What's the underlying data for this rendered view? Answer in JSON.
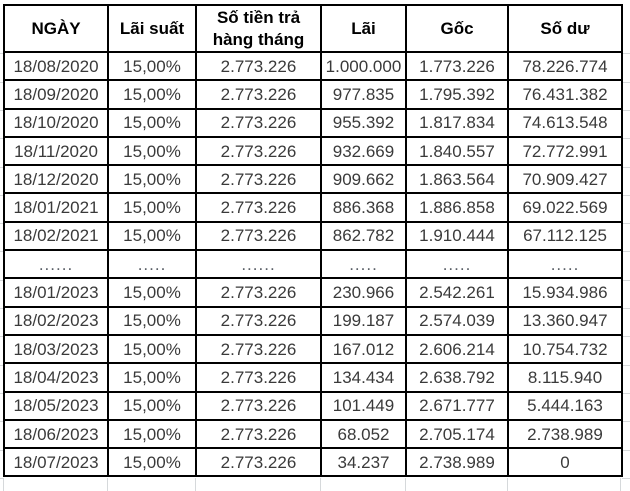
{
  "table": {
    "columns": [
      {
        "label": "NGÀY"
      },
      {
        "label": "Lãi suất"
      },
      {
        "label": "Số tiền trả hàng tháng"
      },
      {
        "label": "Lãi"
      },
      {
        "label": "Gốc"
      },
      {
        "label": "Số dư"
      }
    ],
    "rows": [
      {
        "cells": [
          "18/08/2020",
          "15,00%",
          "2.773.226",
          "1.000.000",
          "1.773.226",
          "78.226.774"
        ]
      },
      {
        "cells": [
          "18/09/2020",
          "15,00%",
          "2.773.226",
          "977.835",
          "1.795.392",
          "76.431.382"
        ]
      },
      {
        "cells": [
          "18/10/2020",
          "15,00%",
          "2.773.226",
          "955.392",
          "1.817.834",
          "74.613.548"
        ]
      },
      {
        "cells": [
          "18/11/2020",
          "15,00%",
          "2.773.226",
          "932.669",
          "1.840.557",
          "72.772.991"
        ]
      },
      {
        "cells": [
          "18/12/2020",
          "15,00%",
          "2.773.226",
          "909.662",
          "1.863.564",
          "70.909.427"
        ]
      },
      {
        "cells": [
          "18/01/2021",
          "15,00%",
          "2.773.226",
          "886.368",
          "1.886.858",
          "69.022.569"
        ]
      },
      {
        "cells": [
          "18/02/2021",
          "15,00%",
          "2.773.226",
          "862.782",
          "1.910.444",
          "67.112.125"
        ]
      },
      {
        "cells": [
          "......",
          ".....",
          "......",
          ".....",
          ".....",
          "....."
        ]
      },
      {
        "cells": [
          "18/01/2023",
          "15,00%",
          "2.773.226",
          "230.966",
          "2.542.261",
          "15.934.986"
        ]
      },
      {
        "cells": [
          "18/02/2023",
          "15,00%",
          "2.773.226",
          "199.187",
          "2.574.039",
          "13.360.947"
        ]
      },
      {
        "cells": [
          "18/03/2023",
          "15,00%",
          "2.773.226",
          "167.012",
          "2.606.214",
          "10.754.732"
        ]
      },
      {
        "cells": [
          "18/04/2023",
          "15,00%",
          "2.773.226",
          "134.434",
          "2.638.792",
          "8.115.940"
        ]
      },
      {
        "cells": [
          "18/05/2023",
          "15,00%",
          "2.773.226",
          "101.449",
          "2.671.777",
          "5.444.163"
        ]
      },
      {
        "cells": [
          "18/06/2023",
          "15,00%",
          "2.773.226",
          "68.052",
          "2.705.174",
          "2.738.989"
        ]
      },
      {
        "cells": [
          "18/07/2023",
          "15,00%",
          "2.773.226",
          "34.237",
          "2.738.989",
          "0"
        ]
      }
    ]
  },
  "colors": {
    "table_border": "#000000",
    "header_text": "#000000",
    "cell_text": "#3a3a3a",
    "gridline": "#d6d9db",
    "background": "#ffffff"
  }
}
